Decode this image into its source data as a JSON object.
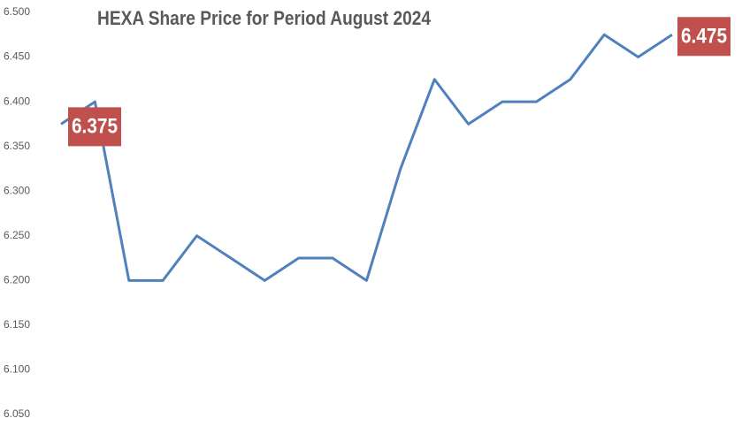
{
  "chart_data": {
    "type": "line",
    "title": "HEXA Share Price for Period August 2024",
    "categories": [
      null,
      null,
      null,
      null,
      null,
      null,
      null,
      null,
      null,
      null,
      null,
      null,
      null,
      null,
      null,
      null,
      null,
      null,
      null
    ],
    "series": [
      {
        "name": null,
        "color": "#4f81bd",
        "values": [
          6.375,
          6.4,
          6.2,
          6.2,
          6.25,
          6.225,
          6.2,
          6.225,
          6.225,
          6.2,
          6.325,
          6.425,
          6.375,
          6.4,
          6.4,
          6.425,
          6.475,
          6.45,
          6.475
        ]
      }
    ],
    "ylim": [
      6.05,
      6.5
    ],
    "yticks": [
      {
        "value": 6.05,
        "label": "6.050"
      },
      {
        "value": 6.1,
        "label": "6.100"
      },
      {
        "value": 6.15,
        "label": "6.150"
      },
      {
        "value": 6.2,
        "label": "6.200"
      },
      {
        "value": 6.25,
        "label": "6.250"
      },
      {
        "value": 6.3,
        "label": "6.300"
      },
      {
        "value": 6.35,
        "label": "6.350"
      },
      {
        "value": 6.4,
        "label": "6.400"
      },
      {
        "value": 6.45,
        "label": "6.450"
      },
      {
        "value": 6.5,
        "label": "6.500"
      }
    ],
    "grid": false,
    "data_labels": "first-last",
    "data_label_color": "#c0504d"
  }
}
